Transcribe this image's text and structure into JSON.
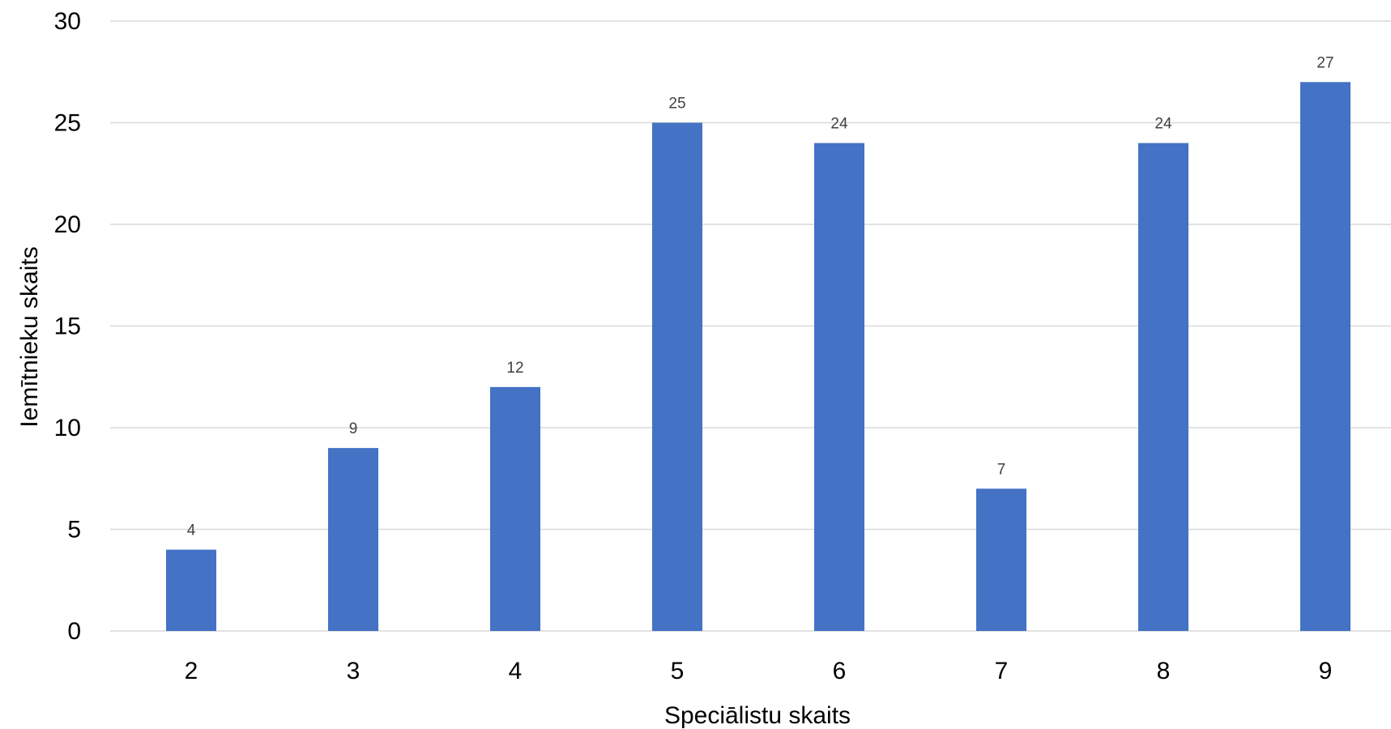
{
  "chart_data": {
    "type": "bar",
    "categories": [
      "2",
      "3",
      "4",
      "5",
      "6",
      "7",
      "8",
      "9"
    ],
    "series": [
      {
        "values": [
          4,
          9,
          12,
          25,
          24,
          7,
          24,
          27
        ]
      }
    ],
    "data_labels": [
      "4",
      "9",
      "12",
      "25",
      "24",
      "7",
      "24",
      "27"
    ],
    "yticks": [
      "0",
      "5",
      "10",
      "15",
      "20",
      "25",
      "30"
    ],
    "xlabel": "Speciālistu skaits",
    "ylabel": "Iemītnieku skaits",
    "ylim": [
      0,
      30
    ],
    "grid": true,
    "legend": "none",
    "bar_color": "#4472C4"
  }
}
